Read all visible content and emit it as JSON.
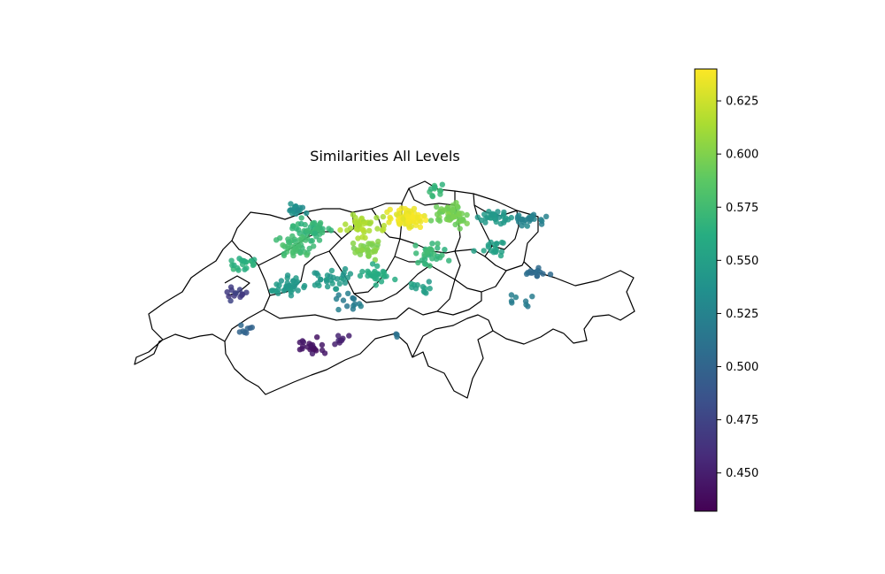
{
  "chart_data": {
    "type": "scatter",
    "title": "Similarities All Levels",
    "colormap": "viridis",
    "color_range": [
      0.432,
      0.64
    ],
    "colorbar_ticks": [
      0.45,
      0.475,
      0.5,
      0.525,
      0.55,
      0.575,
      0.6,
      0.625
    ],
    "colorbar_tick_labels": [
      "0.450",
      "0.475",
      "0.500",
      "0.525",
      "0.550",
      "0.575",
      "0.600",
      "0.625"
    ],
    "lon_range": [
      5.96,
      10.49
    ],
    "lat_range": [
      45.82,
      47.81
    ],
    "clusters": [
      {
        "lon": 8.42,
        "lat": 47.47,
        "value": 0.635,
        "spread": 0.16,
        "count": 70
      },
      {
        "lon": 8.05,
        "lat": 47.4,
        "value": 0.615,
        "spread": 0.17,
        "count": 40
      },
      {
        "lon": 8.85,
        "lat": 47.5,
        "value": 0.595,
        "spread": 0.18,
        "count": 55
      },
      {
        "lon": 8.1,
        "lat": 47.18,
        "value": 0.6,
        "spread": 0.16,
        "count": 30
      },
      {
        "lon": 8.7,
        "lat": 47.72,
        "value": 0.57,
        "spread": 0.1,
        "count": 12
      },
      {
        "lon": 7.6,
        "lat": 47.35,
        "value": 0.57,
        "spread": 0.18,
        "count": 45
      },
      {
        "lon": 7.4,
        "lat": 47.2,
        "value": 0.575,
        "spread": 0.18,
        "count": 40
      },
      {
        "lon": 7.4,
        "lat": 47.55,
        "value": 0.535,
        "spread": 0.1,
        "count": 18
      },
      {
        "lon": 6.95,
        "lat": 47.05,
        "value": 0.565,
        "spread": 0.14,
        "count": 20
      },
      {
        "lon": 7.35,
        "lat": 46.85,
        "value": 0.545,
        "spread": 0.17,
        "count": 35
      },
      {
        "lon": 7.75,
        "lat": 46.9,
        "value": 0.545,
        "spread": 0.18,
        "count": 30
      },
      {
        "lon": 8.15,
        "lat": 46.95,
        "value": 0.56,
        "spread": 0.15,
        "count": 25
      },
      {
        "lon": 8.65,
        "lat": 47.15,
        "value": 0.57,
        "spread": 0.17,
        "count": 30
      },
      {
        "lon": 8.55,
        "lat": 46.85,
        "value": 0.55,
        "spread": 0.12,
        "count": 12
      },
      {
        "lon": 9.2,
        "lat": 47.5,
        "value": 0.545,
        "spread": 0.15,
        "count": 30
      },
      {
        "lon": 9.2,
        "lat": 47.2,
        "value": 0.55,
        "spread": 0.14,
        "count": 18
      },
      {
        "lon": 9.55,
        "lat": 47.45,
        "value": 0.525,
        "spread": 0.12,
        "count": 25
      },
      {
        "lon": 9.6,
        "lat": 46.95,
        "value": 0.505,
        "spread": 0.13,
        "count": 14
      },
      {
        "lon": 9.4,
        "lat": 46.75,
        "value": 0.52,
        "spread": 0.2,
        "count": 8
      },
      {
        "lon": 6.9,
        "lat": 46.78,
        "value": 0.47,
        "spread": 0.1,
        "count": 14
      },
      {
        "lon": 6.95,
        "lat": 46.45,
        "value": 0.5,
        "spread": 0.1,
        "count": 8
      },
      {
        "lon": 7.9,
        "lat": 46.7,
        "value": 0.52,
        "spread": 0.16,
        "count": 14
      },
      {
        "lon": 7.55,
        "lat": 46.3,
        "value": 0.445,
        "spread": 0.13,
        "count": 22
      },
      {
        "lon": 7.85,
        "lat": 46.35,
        "value": 0.452,
        "spread": 0.1,
        "count": 8
      },
      {
        "lon": 8.3,
        "lat": 46.4,
        "value": 0.51,
        "spread": 0.1,
        "count": 3
      }
    ]
  }
}
